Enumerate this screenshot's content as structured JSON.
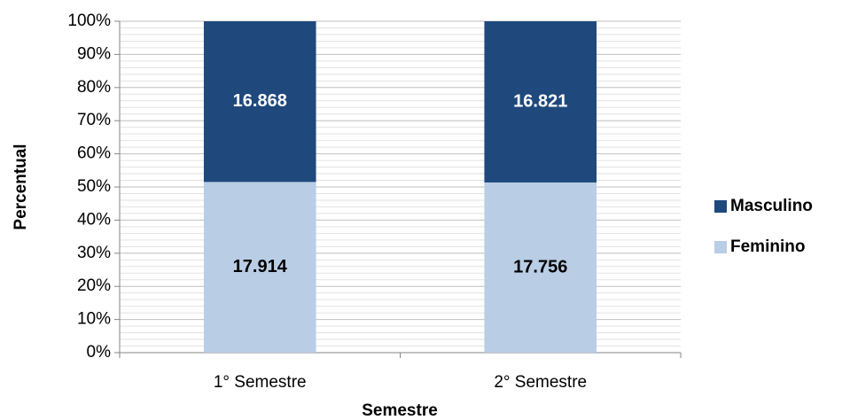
{
  "chart_data": {
    "type": "bar",
    "stacked_percent": true,
    "x_label": "Semestre",
    "y_label": "Percentual",
    "categories": [
      "1° Semestre",
      "2° Semestre"
    ],
    "series": [
      {
        "name": "Feminino",
        "color": "#b9cde5",
        "label_color": "#000000",
        "values": [
          17914,
          17756
        ],
        "value_labels": [
          "17.914",
          "17.756"
        ]
      },
      {
        "name": "Masculino",
        "color": "#1f497d",
        "label_color": "#ffffff",
        "values": [
          16868,
          16821
        ],
        "value_labels": [
          "16.868",
          "16.821"
        ]
      }
    ],
    "ylim": [
      0,
      100
    ],
    "yticks": [
      {
        "value": 0,
        "label": "0%"
      },
      {
        "value": 10,
        "label": "10%"
      },
      {
        "value": 20,
        "label": "20%"
      },
      {
        "value": 30,
        "label": "30%"
      },
      {
        "value": 40,
        "label": "40%"
      },
      {
        "value": 50,
        "label": "50%"
      },
      {
        "value": 60,
        "label": "60%"
      },
      {
        "value": 70,
        "label": "70%"
      },
      {
        "value": 80,
        "label": "80%"
      },
      {
        "value": 90,
        "label": "90%"
      },
      {
        "value": 100,
        "label": "100%"
      }
    ],
    "grid": true,
    "legend": "right"
  }
}
